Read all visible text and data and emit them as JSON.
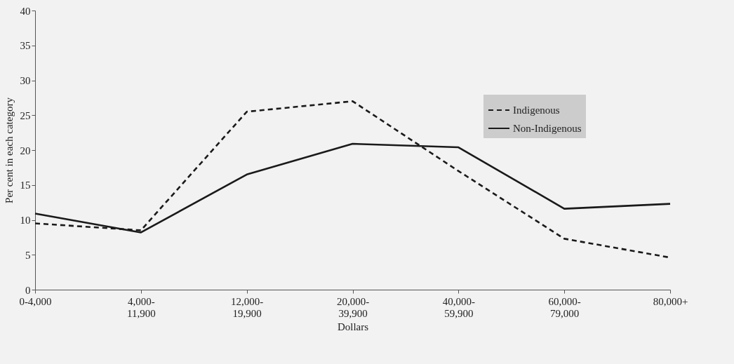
{
  "chart_data": {
    "type": "line",
    "xlabel": "Dollars",
    "ylabel": "Per cent in each category",
    "categories": [
      "0-4,000",
      "4,000-\n11,900",
      "12,000-\n19,900",
      "20,000-\n39,900",
      "40,000-\n59,900",
      "60,000-\n79,000",
      "80,000+"
    ],
    "series": [
      {
        "name": "Indigenous",
        "color": "#1a1a1a",
        "line_style": "dashed",
        "values": [
          9.5,
          8.5,
          25.5,
          27.0,
          17.0,
          7.3,
          4.6
        ]
      },
      {
        "name": "Non-Indigenous",
        "color": "#1a1a1a",
        "line_style": "solid",
        "values": [
          10.9,
          8.2,
          16.5,
          20.9,
          20.4,
          11.6,
          12.3
        ]
      }
    ],
    "ylim": [
      0,
      40
    ],
    "yticks": [
      0,
      5,
      10,
      15,
      20,
      25,
      30,
      35,
      40
    ],
    "grid": false,
    "legend": "top right"
  }
}
